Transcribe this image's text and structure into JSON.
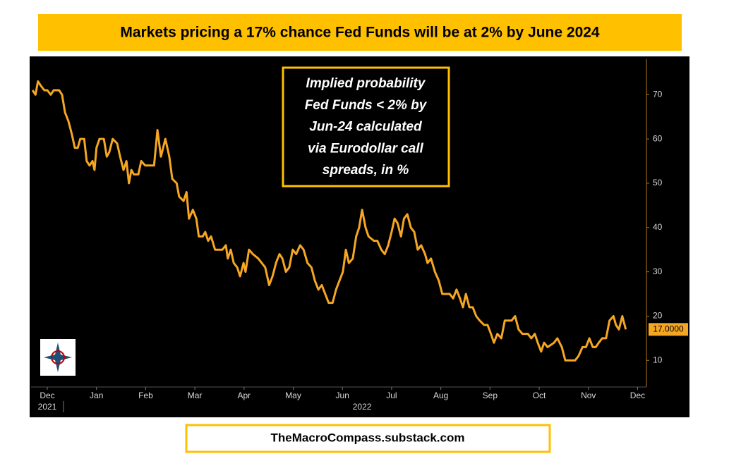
{
  "header": {
    "title": "Markets pricing a 17% chance Fed Funds will be at 2% by June 2024"
  },
  "footer": {
    "text": "TheMacroCompass.substack.com"
  },
  "chart_data": {
    "type": "line",
    "annotation": [
      "Implied probability",
      "Fed Funds < 2% by",
      "Jun-24 calculated",
      "via Eurodollar call",
      "spreads, in %"
    ],
    "x": [
      -0.3,
      -0.24,
      -0.19,
      -0.13,
      -0.06,
      0,
      0.07,
      0.13,
      0.24,
      0.3,
      0.36,
      0.43,
      0.5,
      0.56,
      0.62,
      0.67,
      0.75,
      0.8,
      0.86,
      0.92,
      0.96,
      1.0,
      1.06,
      1.15,
      1.21,
      1.26,
      1.33,
      1.42,
      1.48,
      1.55,
      1.61,
      1.66,
      1.71,
      1.76,
      1.85,
      1.91,
      1.99,
      2.17,
      2.24,
      2.31,
      2.4,
      2.48,
      2.54,
      2.63,
      2.68,
      2.77,
      2.83,
      2.88,
      2.96,
      3.03,
      3.08,
      3.16,
      3.21,
      3.27,
      3.33,
      3.41,
      3.56,
      3.63,
      3.67,
      3.73,
      3.79,
      3.86,
      3.92,
      3.99,
      4.03,
      4.1,
      4.18,
      4.29,
      4.36,
      4.43,
      4.51,
      4.58,
      4.65,
      4.72,
      4.78,
      4.85,
      4.92,
      4.99,
      5.06,
      5.14,
      5.21,
      5.29,
      5.37,
      5.44,
      5.51,
      5.58,
      5.65,
      5.72,
      5.8,
      5.87,
      5.94,
      6.01,
      6.07,
      6.13,
      6.21,
      6.28,
      6.34,
      6.4,
      6.47,
      6.53,
      6.64,
      6.71,
      6.79,
      6.86,
      6.93,
      7.0,
      7.06,
      7.12,
      7.19,
      7.25,
      7.32,
      7.39,
      7.46,
      7.53,
      7.6,
      7.68,
      7.73,
      7.8,
      7.88,
      7.96,
      8.03,
      8.18,
      8.25,
      8.32,
      8.39,
      8.45,
      8.51,
      8.58,
      8.65,
      8.72,
      8.79,
      8.88,
      8.95,
      9.02,
      9.08,
      9.15,
      9.23,
      9.3,
      9.44,
      9.51,
      9.58,
      9.66,
      9.77,
      9.84,
      9.91,
      9.97,
      10.04,
      10.1,
      10.17,
      10.3,
      10.37,
      10.46,
      10.53,
      10.73,
      10.8,
      10.88,
      10.95,
      11.02,
      11.09,
      11.15,
      11.21,
      11.28,
      11.36,
      11.43,
      11.51,
      11.56,
      11.62,
      11.69,
      11.76
    ],
    "series": [
      {
        "name": "Implied probability",
        "color": "#f5a623",
        "values": [
          71,
          70,
          73,
          72,
          71,
          71,
          70,
          71,
          71,
          70,
          66,
          64,
          61,
          58,
          58,
          60,
          60,
          55,
          54,
          55,
          53,
          58,
          60,
          60,
          56,
          57,
          60,
          59,
          56,
          53,
          55,
          50,
          53,
          52,
          52,
          55,
          54,
          54,
          62,
          56,
          60,
          56,
          51,
          50,
          47,
          46,
          48,
          42,
          44,
          42,
          38,
          38,
          39,
          37,
          38,
          35,
          35,
          36,
          33,
          35,
          32,
          31,
          29,
          32,
          30,
          35,
          34,
          33,
          32,
          31,
          27,
          29,
          32,
          34,
          33,
          30,
          31,
          35,
          34,
          36,
          35,
          32,
          31,
          28,
          26,
          27,
          25,
          23,
          23,
          26,
          28,
          30,
          35,
          32,
          33,
          38,
          40,
          44,
          40,
          38,
          37,
          37,
          35,
          34,
          36,
          39,
          42,
          41,
          38,
          42,
          43,
          40,
          39,
          35,
          36,
          34,
          32,
          33,
          30,
          28,
          25,
          25,
          24,
          26,
          24,
          22,
          25,
          22,
          22,
          20,
          19,
          18,
          18,
          16,
          14,
          16,
          15,
          19,
          19,
          20,
          17,
          16,
          16,
          15,
          16,
          14,
          12,
          14,
          13,
          14,
          15,
          13,
          10,
          10,
          11,
          13,
          13,
          15,
          13,
          13,
          14,
          15,
          15,
          19,
          20,
          18,
          17,
          20,
          17
        ]
      }
    ],
    "last_value_label": "17.0000",
    "xlim": [
      -0.33,
      12.18
    ],
    "xticks": [
      {
        "value": 0,
        "label": "Dec"
      },
      {
        "value": 1,
        "label": "Jan"
      },
      {
        "value": 2,
        "label": "Feb"
      },
      {
        "value": 3,
        "label": "Mar"
      },
      {
        "value": 4,
        "label": "Apr"
      },
      {
        "value": 5,
        "label": "May"
      },
      {
        "value": 6,
        "label": "Jun"
      },
      {
        "value": 7,
        "label": "Jul"
      },
      {
        "value": 8,
        "label": "Aug"
      },
      {
        "value": 9,
        "label": "Sep"
      },
      {
        "value": 10,
        "label": "Oct"
      },
      {
        "value": 11,
        "label": "Nov"
      },
      {
        "value": 12,
        "label": "Dec"
      }
    ],
    "year_labels": [
      {
        "value": 0,
        "label": "2021"
      },
      {
        "value": 6.4,
        "label": "2022"
      }
    ],
    "ylim": [
      4,
      78
    ],
    "yticks": [
      10,
      20,
      30,
      40,
      50,
      60,
      70
    ]
  }
}
